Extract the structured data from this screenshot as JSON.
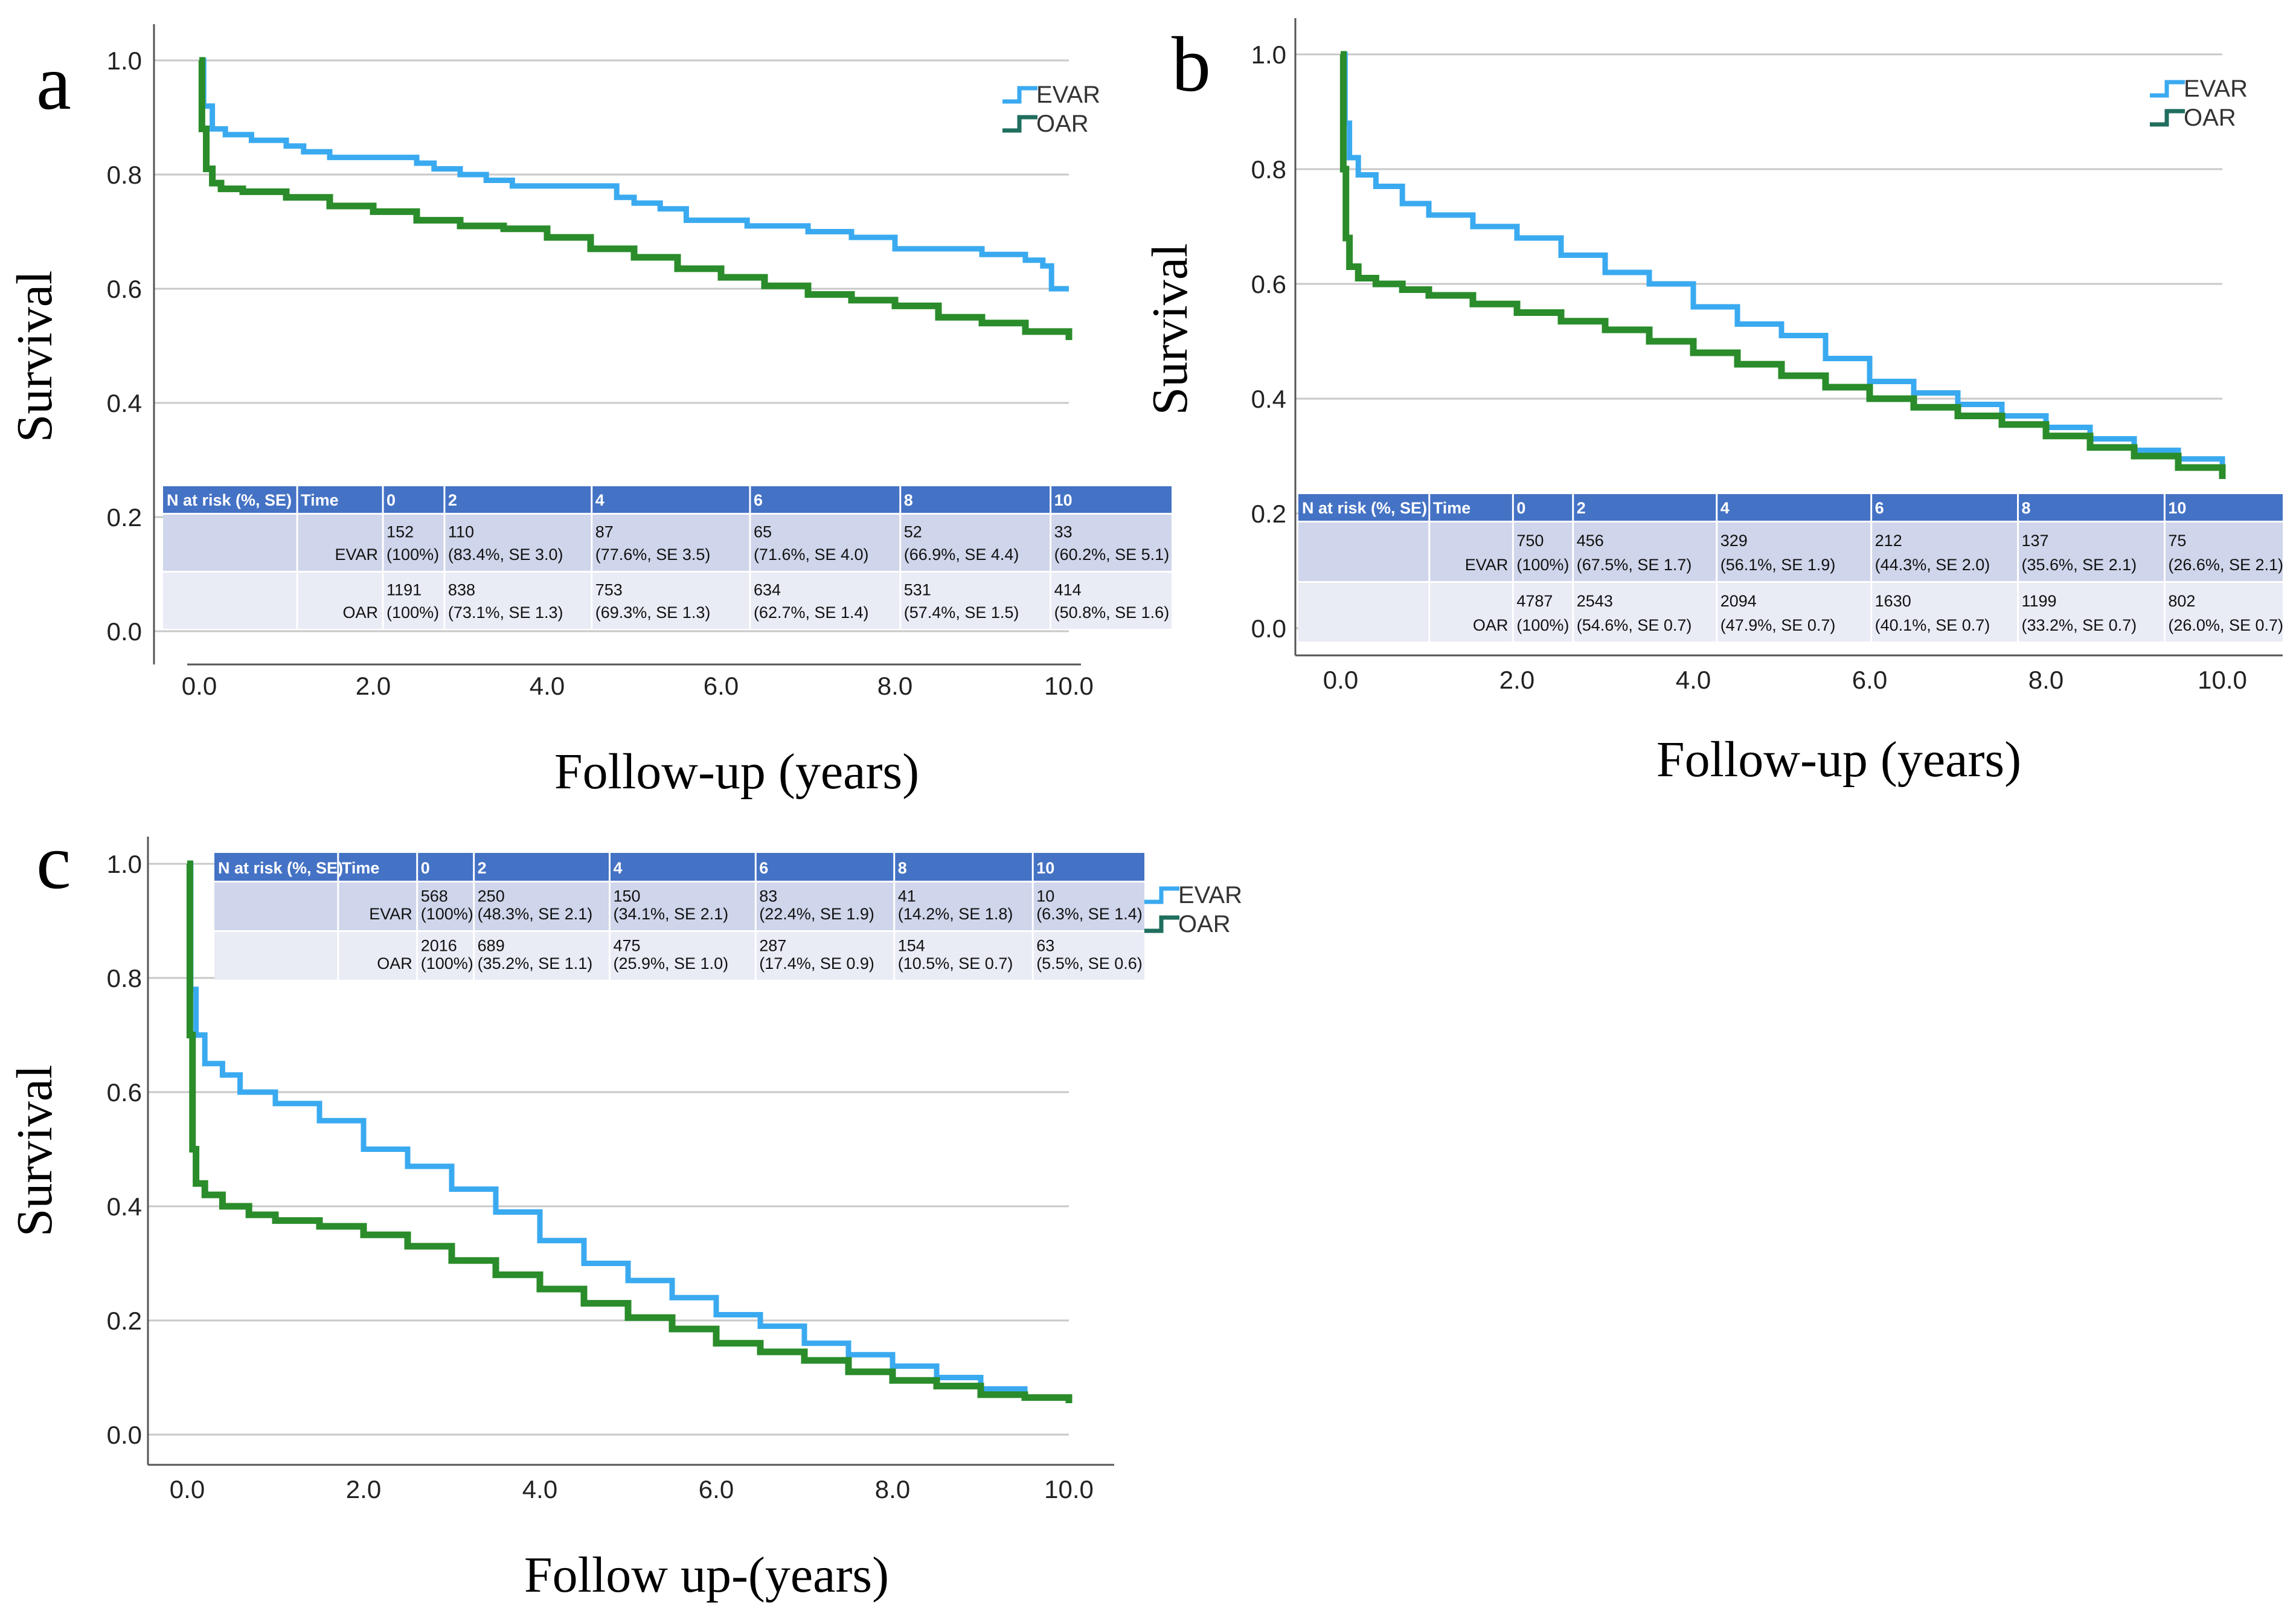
{
  "colors": {
    "evar": "#3aaaf0",
    "oar": "#2a8c2a",
    "legend_oar": "#1f6e5e",
    "grid": "#c8c8c8",
    "axis": "#555555",
    "table_header": "#4472c4",
    "table_row_a": "#cfd5ea",
    "table_row_b": "#e9ebf5"
  },
  "chart_data": [
    {
      "panel": "a",
      "type": "line",
      "title": "",
      "xlabel": "Follow-up (years)",
      "ylabel": "Survival",
      "xlim": [
        0,
        10
      ],
      "ylim": [
        0,
        1
      ],
      "x_ticks": [
        "0.0",
        "2.0",
        "4.0",
        "6.0",
        "8.0",
        "10.0"
      ],
      "y_ticks": [
        "0.0",
        "0.2",
        "0.4",
        "0.6",
        "0.8",
        "1.0"
      ],
      "grid": true,
      "legend": [
        "EVAR",
        "OAR"
      ],
      "legend_position": "top-right",
      "table_position": "bottom",
      "series": [
        {
          "name": "EVAR",
          "x": [
            0,
            0.05,
            0.15,
            0.3,
            0.6,
            1.0,
            1.2,
            1.5,
            2.0,
            2.5,
            2.7,
            3.0,
            3.3,
            3.6,
            4.0,
            4.5,
            4.8,
            5.0,
            5.3,
            5.6,
            6.0,
            6.3,
            6.7,
            7.0,
            7.5,
            8.0,
            8.5,
            9.0,
            9.5,
            9.7,
            9.8,
            10.0
          ],
          "y": [
            1.0,
            0.92,
            0.88,
            0.87,
            0.86,
            0.85,
            0.84,
            0.83,
            0.83,
            0.82,
            0.81,
            0.8,
            0.79,
            0.78,
            0.78,
            0.78,
            0.76,
            0.75,
            0.74,
            0.72,
            0.72,
            0.71,
            0.71,
            0.7,
            0.69,
            0.67,
            0.67,
            0.66,
            0.65,
            0.64,
            0.6,
            0.6
          ]
        },
        {
          "name": "OAR",
          "x": [
            0,
            0.03,
            0.08,
            0.15,
            0.25,
            0.5,
            1.0,
            1.5,
            2.0,
            2.5,
            3.0,
            3.5,
            4.0,
            4.5,
            5.0,
            5.5,
            6.0,
            6.5,
            7.0,
            7.5,
            8.0,
            8.5,
            9.0,
            9.5,
            10.0
          ],
          "y": [
            1.0,
            0.88,
            0.81,
            0.785,
            0.775,
            0.77,
            0.76,
            0.745,
            0.735,
            0.72,
            0.71,
            0.705,
            0.69,
            0.67,
            0.655,
            0.635,
            0.62,
            0.605,
            0.59,
            0.58,
            0.57,
            0.55,
            0.54,
            0.525,
            0.51
          ]
        }
      ],
      "table": {
        "header": [
          "N at risk (%, SE)",
          "Time",
          "0",
          "2",
          "4",
          "6",
          "8",
          "10"
        ],
        "rows": [
          {
            "label": "EVAR",
            "cells": [
              [
                "152",
                "(100%)"
              ],
              [
                "110",
                "(83.4%, SE 3.0)"
              ],
              [
                "87",
                "(77.6%, SE 3.5)"
              ],
              [
                "65",
                "(71.6%, SE 4.0)"
              ],
              [
                "52",
                "(66.9%, SE 4.4)"
              ],
              [
                "33",
                "(60.2%, SE 5.1)"
              ]
            ]
          },
          {
            "label": "OAR",
            "cells": [
              [
                "1191",
                "(100%)"
              ],
              [
                "838",
                "(73.1%, SE 1.3)"
              ],
              [
                "753",
                "(69.3%, SE 1.3)"
              ],
              [
                "634",
                "(62.7%, SE 1.4)"
              ],
              [
                "531",
                "(57.4%, SE 1.5)"
              ],
              [
                "414",
                "(50.8%, SE 1.6)"
              ]
            ]
          }
        ]
      }
    },
    {
      "panel": "b",
      "type": "line",
      "title": "",
      "xlabel": "Follow-up (years)",
      "ylabel": "Survival",
      "xlim": [
        0,
        10
      ],
      "ylim": [
        0,
        1
      ],
      "x_ticks": [
        "0.0",
        "2.0",
        "4.0",
        "6.0",
        "8.0",
        "10.0"
      ],
      "y_ticks": [
        "0.0",
        "0.2",
        "0.4",
        "0.6",
        "0.8",
        "1.0"
      ],
      "grid": true,
      "legend": [
        "EVAR",
        "OAR"
      ],
      "legend_position": "top-right",
      "table_position": "bottom",
      "series": [
        {
          "name": "EVAR",
          "x": [
            0,
            0.05,
            0.1,
            0.2,
            0.4,
            0.7,
            1.0,
            1.5,
            2.0,
            2.5,
            3.0,
            3.5,
            4.0,
            4.5,
            5.0,
            5.5,
            6.0,
            6.5,
            7.0,
            7.5,
            8.0,
            8.5,
            9.0,
            9.5,
            10.0
          ],
          "y": [
            1.0,
            0.88,
            0.82,
            0.79,
            0.77,
            0.74,
            0.72,
            0.7,
            0.68,
            0.65,
            0.62,
            0.6,
            0.56,
            0.53,
            0.51,
            0.47,
            0.43,
            0.41,
            0.39,
            0.37,
            0.35,
            0.33,
            0.31,
            0.295,
            0.27
          ]
        },
        {
          "name": "OAR",
          "x": [
            0,
            0.03,
            0.06,
            0.1,
            0.2,
            0.4,
            0.7,
            1.0,
            1.5,
            2.0,
            2.5,
            3.0,
            3.5,
            4.0,
            4.5,
            5.0,
            5.5,
            6.0,
            6.5,
            7.0,
            7.5,
            8.0,
            8.5,
            9.0,
            9.5,
            10.0
          ],
          "y": [
            1.0,
            0.8,
            0.68,
            0.63,
            0.61,
            0.6,
            0.59,
            0.58,
            0.565,
            0.55,
            0.535,
            0.52,
            0.5,
            0.48,
            0.46,
            0.44,
            0.42,
            0.4,
            0.385,
            0.37,
            0.355,
            0.335,
            0.315,
            0.3,
            0.28,
            0.26
          ]
        }
      ],
      "table": {
        "header": [
          "N at risk (%, SE)",
          "Time",
          "0",
          "2",
          "4",
          "6",
          "8",
          "10"
        ],
        "rows": [
          {
            "label": "EVAR",
            "cells": [
              [
                "750",
                "(100%)"
              ],
              [
                "456",
                "(67.5%, SE 1.7)"
              ],
              [
                "329",
                "(56.1%, SE 1.9)"
              ],
              [
                "212",
                "(44.3%, SE 2.0)"
              ],
              [
                "137",
                "(35.6%, SE 2.1)"
              ],
              [
                "75",
                "(26.6%, SE 2.1)"
              ]
            ]
          },
          {
            "label": "OAR",
            "cells": [
              [
                "4787",
                "(100%)"
              ],
              [
                "2543",
                "(54.6%, SE 0.7)"
              ],
              [
                "2094",
                "(47.9%, SE 0.7)"
              ],
              [
                "1630",
                "(40.1%, SE 0.7)"
              ],
              [
                "1199",
                "(33.2%, SE 0.7)"
              ],
              [
                "802",
                "(26.0%, SE 0.7)"
              ]
            ]
          }
        ]
      }
    },
    {
      "panel": "c",
      "type": "line",
      "title": "",
      "xlabel": "Follow up-(years)",
      "ylabel": "Survival",
      "xlim": [
        0,
        10
      ],
      "ylim": [
        0,
        1
      ],
      "x_ticks": [
        "0.0",
        "2.0",
        "4.0",
        "6.0",
        "8.0",
        "10.0"
      ],
      "y_ticks": [
        "0.0",
        "0.2",
        "0.4",
        "0.6",
        "0.8",
        "1.0"
      ],
      "grid": true,
      "legend": [
        "EVAR",
        "OAR"
      ],
      "legend_position": "top-right",
      "table_position": "top",
      "series": [
        {
          "name": "EVAR",
          "x": [
            0,
            0.04,
            0.1,
            0.2,
            0.4,
            0.6,
            1.0,
            1.5,
            2.0,
            2.5,
            3.0,
            3.5,
            4.0,
            4.5,
            5.0,
            5.5,
            6.0,
            6.5,
            7.0,
            7.5,
            8.0,
            8.5,
            9.0,
            9.5,
            10.0
          ],
          "y": [
            1.0,
            0.78,
            0.7,
            0.65,
            0.63,
            0.6,
            0.58,
            0.55,
            0.5,
            0.47,
            0.43,
            0.39,
            0.34,
            0.3,
            0.27,
            0.24,
            0.21,
            0.19,
            0.16,
            0.14,
            0.12,
            0.1,
            0.08,
            0.065,
            0.06
          ]
        },
        {
          "name": "OAR",
          "x": [
            0,
            0.03,
            0.06,
            0.1,
            0.2,
            0.4,
            0.7,
            1.0,
            1.5,
            2.0,
            2.5,
            3.0,
            3.5,
            4.0,
            4.5,
            5.0,
            5.5,
            6.0,
            6.5,
            7.0,
            7.5,
            8.0,
            8.5,
            9.0,
            9.5,
            10.0
          ],
          "y": [
            1.0,
            0.7,
            0.5,
            0.44,
            0.42,
            0.4,
            0.385,
            0.375,
            0.365,
            0.35,
            0.33,
            0.305,
            0.28,
            0.255,
            0.23,
            0.205,
            0.185,
            0.16,
            0.145,
            0.13,
            0.11,
            0.095,
            0.085,
            0.07,
            0.065,
            0.055
          ]
        }
      ],
      "table": {
        "header": [
          "N at risk (%, SE)",
          "Time",
          "0",
          "2",
          "4",
          "6",
          "8",
          "10"
        ],
        "rows": [
          {
            "label": "EVAR",
            "cells": [
              [
                "568",
                "(100%)"
              ],
              [
                "250",
                "(48.3%, SE 2.1)"
              ],
              [
                "150",
                "(34.1%, SE 2.1)"
              ],
              [
                "83",
                "(22.4%, SE 1.9)"
              ],
              [
                "41",
                "(14.2%, SE 1.8)"
              ],
              [
                "10",
                "(6.3%, SE 1.4)"
              ]
            ]
          },
          {
            "label": "OAR",
            "cells": [
              [
                "2016",
                "(100%)"
              ],
              [
                "689",
                "(35.2%, SE 1.1)"
              ],
              [
                "475",
                "(25.9%, SE 1.0)"
              ],
              [
                "287",
                "(17.4%, SE 0.9)"
              ],
              [
                "154",
                "(10.5%, SE 0.7)"
              ],
              [
                "63",
                "(5.5%, SE 0.6)"
              ]
            ]
          }
        ]
      }
    }
  ]
}
